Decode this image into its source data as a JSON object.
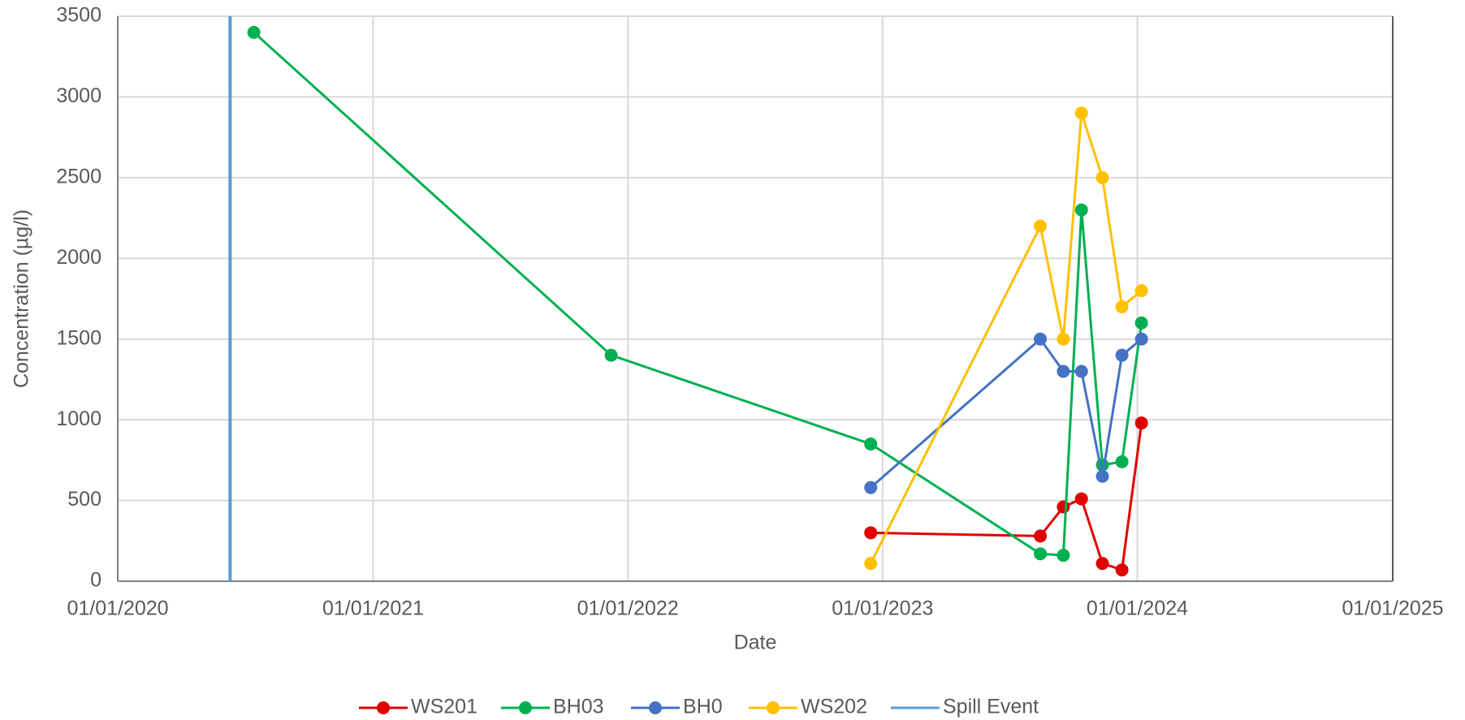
{
  "chart_data": {
    "type": "line",
    "x_label": "Date",
    "y_label": "Concentration (µg/l)",
    "xlim": [
      "2020-01-01",
      "2025-01-01"
    ],
    "xticks": [
      {
        "value": "2020-01-01",
        "label": "01/01/2020"
      },
      {
        "value": "2021-01-01",
        "label": "01/01/2021"
      },
      {
        "value": "2022-01-01",
        "label": "01/01/2022"
      },
      {
        "value": "2023-01-01",
        "label": "01/01/2023"
      },
      {
        "value": "2024-01-01",
        "label": "01/01/2024"
      },
      {
        "value": "2025-01-01",
        "label": "01/01/2025"
      }
    ],
    "ylim": [
      0,
      3500
    ],
    "yticks": [
      0,
      500,
      1000,
      1500,
      2000,
      2500,
      3000,
      3500
    ],
    "grid": true,
    "legend": "bottom",
    "series": [
      {
        "name": "WS201",
        "color": "#e00000",
        "markers": true,
        "x": [
          "2022-12-15",
          "2023-08-15",
          "2023-09-17",
          "2023-10-13",
          "2023-11-12",
          "2023-12-10",
          "2024-01-07"
        ],
        "values": [
          300,
          280,
          460,
          510,
          110,
          70,
          980
        ]
      },
      {
        "name": "BH03",
        "color": "#00b050",
        "markers": true,
        "x": [
          "2020-07-14",
          "2021-12-08",
          "2022-12-15",
          "2023-08-15",
          "2023-09-17",
          "2023-10-13",
          "2023-11-12",
          "2023-12-10",
          "2024-01-07"
        ],
        "values": [
          3400,
          1400,
          850,
          170,
          160,
          2300,
          720,
          740,
          1600
        ]
      },
      {
        "name": "BH0",
        "color": "#4472c4",
        "markers": true,
        "x": [
          "2022-12-15",
          "2023-08-15",
          "2023-09-17",
          "2023-10-13",
          "2023-11-12",
          "2023-12-10",
          "2024-01-07"
        ],
        "values": [
          580,
          1500,
          1300,
          1300,
          650,
          1400,
          1500
        ]
      },
      {
        "name": "WS202",
        "color": "#ffc000",
        "markers": true,
        "x": [
          "2022-12-15",
          "2023-08-15",
          "2023-09-17",
          "2023-10-13",
          "2023-11-12",
          "2023-12-10",
          "2024-01-07"
        ],
        "values": [
          110,
          2200,
          1500,
          2900,
          2500,
          1700,
          1800
        ]
      },
      {
        "name": "Spill Event",
        "color": "#5b9bd5",
        "markers": false,
        "x": [
          "2020-06-10",
          "2020-06-10"
        ],
        "values": [
          0,
          3500
        ]
      }
    ]
  }
}
